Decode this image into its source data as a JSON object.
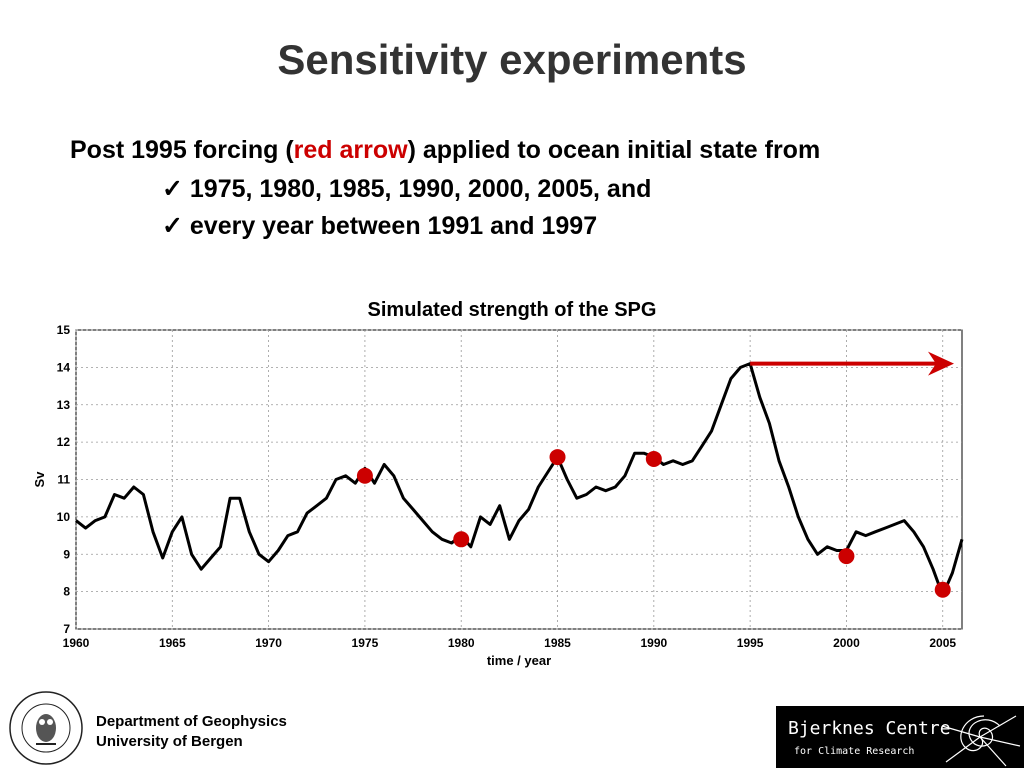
{
  "slide": {
    "title": "Sensitivity experiments",
    "intro_before": "Post 1995 forcing (",
    "intro_highlight": "red arrow",
    "intro_after": ") applied to ocean initial state from",
    "bullets": [
      "✓ 1975, 1980, 1985, 1990, 2000, 2005, and",
      "✓ every year between 1991 and 1997"
    ]
  },
  "chart_data": {
    "type": "line",
    "title": "Simulated strength of the SPG",
    "xlabel": "time / year",
    "ylabel": "Sv",
    "xlim": [
      1960,
      2006
    ],
    "ylim": [
      7,
      15
    ],
    "xticks": [
      1960,
      1965,
      1970,
      1975,
      1980,
      1985,
      1990,
      1995,
      2000,
      2005
    ],
    "yticks": [
      7,
      8,
      9,
      10,
      11,
      12,
      13,
      14,
      15
    ],
    "grid": true,
    "series": [
      {
        "color": "#000000",
        "x": [
          1960,
          1960.5,
          1961,
          1961.5,
          1962,
          1962.5,
          1963,
          1963.5,
          1964,
          1964.5,
          1965,
          1965.5,
          1966,
          1966.5,
          1967,
          1967.5,
          1968,
          1968.5,
          1969,
          1969.5,
          1970,
          1970.5,
          1971,
          1971.5,
          1972,
          1972.5,
          1973,
          1973.5,
          1974,
          1974.5,
          1975,
          1975.5,
          1976,
          1976.5,
          1977,
          1977.5,
          1978,
          1978.5,
          1979,
          1979.5,
          1980,
          1980.5,
          1981,
          1981.5,
          1982,
          1982.5,
          1983,
          1983.5,
          1984,
          1984.5,
          1985,
          1985.5,
          1986,
          1986.5,
          1987,
          1987.5,
          1988,
          1988.5,
          1989,
          1989.5,
          1990,
          1990.5,
          1991,
          1991.5,
          1992,
          1992.5,
          1993,
          1993.5,
          1994,
          1994.5,
          1995,
          1995.5,
          1996,
          1996.5,
          1997,
          1997.5,
          1998,
          1998.5,
          1999,
          1999.5,
          2000,
          2000.5,
          2001,
          2001.5,
          2002,
          2002.5,
          2003,
          2003.5,
          2004,
          2004.5,
          2005,
          2005.5,
          2006
        ],
        "y": [
          9.9,
          9.7,
          9.9,
          10.0,
          10.6,
          10.5,
          10.8,
          10.6,
          9.6,
          8.9,
          9.6,
          10.0,
          9.0,
          8.6,
          8.9,
          9.2,
          10.5,
          10.5,
          9.6,
          9.0,
          8.8,
          9.1,
          9.5,
          9.6,
          10.1,
          10.3,
          10.5,
          11.0,
          11.1,
          10.9,
          11.3,
          10.9,
          11.4,
          11.1,
          10.5,
          10.2,
          9.9,
          9.6,
          9.4,
          9.3,
          9.5,
          9.2,
          10.0,
          9.8,
          10.3,
          9.4,
          9.9,
          10.2,
          10.8,
          11.2,
          11.6,
          11.0,
          10.5,
          10.6,
          10.8,
          10.7,
          10.8,
          11.1,
          11.7,
          11.7,
          11.6,
          11.4,
          11.5,
          11.4,
          11.5,
          11.9,
          12.3,
          13.0,
          13.7,
          14.0,
          14.1,
          13.2,
          12.5,
          11.5,
          10.8,
          10.0,
          9.4,
          9.0,
          9.2,
          9.1,
          9.1,
          9.6,
          9.5,
          9.6,
          9.7,
          9.8,
          9.9,
          9.6,
          9.2,
          8.6,
          7.9,
          8.5,
          9.4
        ]
      }
    ],
    "markers": {
      "color": "#cc0000",
      "points": [
        {
          "x": 1975,
          "y": 11.1
        },
        {
          "x": 1980,
          "y": 9.4
        },
        {
          "x": 1985,
          "y": 11.6
        },
        {
          "x": 1990,
          "y": 11.55
        },
        {
          "x": 2000,
          "y": 8.95
        },
        {
          "x": 2005,
          "y": 8.05
        }
      ]
    },
    "arrow": {
      "color": "#cc0000",
      "x_start": 1995,
      "x_end": 2006,
      "y": 14.1
    }
  },
  "footer": {
    "dept_line1": "Department of Geophysics",
    "dept_line2": "University of Bergen",
    "logo_text": "UNIVERSITAS BERGENSIS",
    "bjerknes_name": "Bjerknes Centre",
    "bjerknes_sub": "for Climate Research"
  }
}
